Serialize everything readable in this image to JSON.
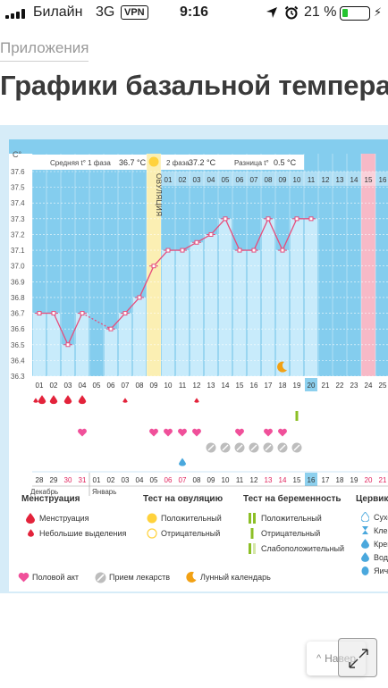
{
  "status_bar": {
    "carrier": "Билайн",
    "network": "3G",
    "vpn": "VPN",
    "time": "9:16",
    "battery_percent": "21 %",
    "battery_level": 0.21,
    "icons": [
      "signal-icon",
      "location-icon",
      "alarm-icon",
      "battery-icon",
      "charging-icon"
    ]
  },
  "page": {
    "breadcrumb": "Приложения",
    "title": "Графики базальной темпера"
  },
  "chart_data": {
    "type": "line",
    "ylabel": "C°",
    "y_ticks": [
      "36.3",
      "36.4",
      "36.5",
      "36.6",
      "36.7",
      "36.8",
      "36.9",
      "37.0",
      "37.1",
      "37.2",
      "37.3",
      "37.4",
      "37.5",
      "37.6"
    ],
    "ylim": [
      36.3,
      37.6
    ],
    "grid": true,
    "phase1_label": "Средняя t° 1 фаза",
    "phase1_value": "36.7 °C",
    "phase2_label": "2 фаза",
    "phase2_value": "37.2 °C",
    "diff_label": "Разница t°",
    "diff_value": "0.5 °C",
    "ovulation_label": "ОВУЛЯЦИЯ",
    "ovulation_day_index": 8,
    "cycle_days": [
      "01",
      "02",
      "03",
      "04",
      "05",
      "06",
      "07",
      "08",
      "09",
      "10",
      "11",
      "12",
      "13",
      "14",
      "15",
      "16",
      "17",
      "18",
      "19",
      "20",
      "21",
      "22",
      "23",
      "24",
      "25"
    ],
    "highlight_day_index": 19,
    "phase2_days": [
      "01",
      "02",
      "03",
      "04",
      "05",
      "06",
      "07",
      "08",
      "09",
      "10",
      "11",
      "12",
      "13",
      "14",
      "15",
      "16"
    ],
    "phase2_pink_index": 14,
    "temperatures": [
      36.7,
      36.7,
      36.5,
      36.7,
      null,
      36.6,
      36.7,
      36.8,
      37.0,
      37.1,
      37.1,
      37.15,
      37.2,
      37.3,
      37.1,
      37.1,
      37.3,
      37.1,
      37.3,
      37.3,
      null,
      null,
      null,
      null,
      null
    ],
    "dashed_segment": [
      3,
      5
    ],
    "dates": [
      "28",
      "29",
      "30",
      "31",
      "01",
      "02",
      "03",
      "04",
      "05",
      "06",
      "07",
      "08",
      "09",
      "10",
      "11",
      "12",
      "13",
      "14",
      "15",
      "16",
      "17",
      "18",
      "19",
      "20",
      "21"
    ],
    "weekend_date_indices": [
      2,
      3,
      9,
      10,
      16,
      17,
      23,
      24
    ],
    "today_date_index": 19,
    "month_labels": [
      {
        "index": 0,
        "text": "Декабрь"
      },
      {
        "index": 4,
        "text": "Январь"
      }
    ],
    "menstruation_days": [
      0,
      1,
      2,
      3
    ],
    "light_spotting_days": [
      0,
      6,
      11
    ],
    "intercourse_days": [
      3,
      8,
      9,
      10,
      11,
      14,
      16,
      17
    ],
    "medication_days": [
      12,
      13,
      14,
      15,
      16,
      17,
      18
    ],
    "cervical_mucus_water_days": [
      10
    ],
    "pregnancy_test_negative_days": [
      18
    ],
    "lunar_calendar_days": [
      17
    ]
  },
  "legend": {
    "menstruation": {
      "title": "Менструация",
      "items": [
        "Менструация",
        "Небольшие выделения"
      ]
    },
    "ovulation_test": {
      "title": "Тест на овуляцию",
      "items": [
        "Положительный",
        "Отрицательный"
      ]
    },
    "pregnancy_test": {
      "title": "Тест на беременность",
      "items": [
        "Положительный",
        "Отрицательный",
        "Слабоположительный"
      ]
    },
    "cervical": {
      "title": "Цервика",
      "items": [
        "Сухо",
        "Клей",
        "Крем",
        "Вод",
        "Яич"
      ]
    },
    "bottom": [
      "Половой акт",
      "Прием лекарств",
      "Лунный календарь"
    ]
  },
  "buttons": {
    "back": "Навер"
  },
  "colors": {
    "chart_blue": "#84cdee",
    "bar_light": "#c8ebfb",
    "ovulation_yellow": "#fbefb3",
    "pink_column": "#f7b9c7",
    "line": "#e64d7c",
    "today_cell": "#8dd0ee",
    "drop_red": "#e3233b",
    "heart_pink": "#f0509a",
    "sun_yellow": "#ffd23c",
    "test_green": "#8cbf26",
    "moon_orange": "#f2a114",
    "battery_green": "#25c430"
  }
}
